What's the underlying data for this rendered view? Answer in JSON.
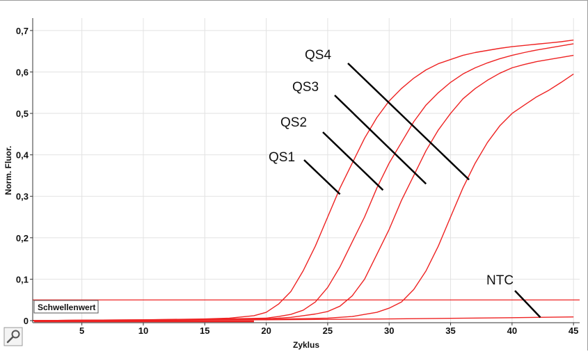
{
  "chart_data": {
    "type": "line",
    "xlabel": "Zyklus",
    "ylabel": "Norm. Fluor.",
    "xlim": [
      1,
      45.5
    ],
    "ylim": [
      -0.005,
      0.73
    ],
    "x_ticks": [
      5,
      10,
      15,
      20,
      25,
      30,
      35,
      40,
      45
    ],
    "y_ticks": [
      {
        "value": 0,
        "label": "0"
      },
      {
        "value": 0.1,
        "label": "0,1"
      },
      {
        "value": 0.2,
        "label": "0,2"
      },
      {
        "value": 0.3,
        "label": "0,3"
      },
      {
        "value": 0.4,
        "label": "0,4"
      },
      {
        "value": 0.5,
        "label": "0,5"
      },
      {
        "value": 0.6,
        "label": "0,6"
      },
      {
        "value": 0.7,
        "label": "0,7"
      }
    ],
    "grid": true,
    "line_color": "#ee2222",
    "series": [
      {
        "name": "QS4",
        "x": [
          1,
          5,
          10,
          15,
          17,
          19,
          20,
          21,
          22,
          23,
          24,
          25,
          26,
          27,
          28,
          29,
          30,
          31,
          32,
          33,
          34,
          35,
          36,
          37,
          38,
          39,
          40,
          41,
          42,
          43,
          44,
          45
        ],
        "y": [
          0,
          0.001,
          0.002,
          0.004,
          0.006,
          0.012,
          0.02,
          0.04,
          0.07,
          0.12,
          0.18,
          0.25,
          0.32,
          0.38,
          0.44,
          0.49,
          0.53,
          0.56,
          0.585,
          0.605,
          0.62,
          0.63,
          0.64,
          0.647,
          0.652,
          0.657,
          0.661,
          0.664,
          0.667,
          0.67,
          0.673,
          0.677
        ]
      },
      {
        "name": "QS3",
        "x": [
          1,
          5,
          10,
          15,
          20,
          21,
          22,
          23,
          24,
          25,
          26,
          27,
          28,
          29,
          30,
          31,
          32,
          33,
          34,
          35,
          36,
          37,
          38,
          39,
          40,
          41,
          42,
          43,
          44,
          45
        ],
        "y": [
          0,
          0.001,
          0.002,
          0.003,
          0.006,
          0.01,
          0.015,
          0.025,
          0.045,
          0.08,
          0.13,
          0.19,
          0.25,
          0.32,
          0.38,
          0.43,
          0.48,
          0.52,
          0.55,
          0.575,
          0.595,
          0.61,
          0.622,
          0.632,
          0.64,
          0.647,
          0.653,
          0.658,
          0.663,
          0.668
        ]
      },
      {
        "name": "QS2",
        "x": [
          1,
          5,
          10,
          15,
          20,
          22,
          23,
          24,
          25,
          26,
          27,
          28,
          29,
          30,
          31,
          32,
          33,
          34,
          35,
          36,
          37,
          38,
          39,
          40,
          41,
          42,
          43,
          44,
          45
        ],
        "y": [
          0,
          0.001,
          0.001,
          0.002,
          0.004,
          0.008,
          0.012,
          0.016,
          0.022,
          0.035,
          0.06,
          0.1,
          0.16,
          0.22,
          0.29,
          0.35,
          0.41,
          0.46,
          0.5,
          0.535,
          0.56,
          0.58,
          0.597,
          0.61,
          0.618,
          0.625,
          0.63,
          0.635,
          0.64
        ]
      },
      {
        "name": "QS1",
        "x": [
          1,
          5,
          10,
          15,
          20,
          25,
          27,
          28,
          29,
          30,
          31,
          32,
          33,
          34,
          35,
          36,
          37,
          38,
          39,
          40,
          41,
          42,
          43,
          44,
          45
        ],
        "y": [
          0,
          0.001,
          0.001,
          0.002,
          0.003,
          0.006,
          0.01,
          0.015,
          0.02,
          0.03,
          0.045,
          0.075,
          0.12,
          0.18,
          0.25,
          0.32,
          0.38,
          0.43,
          0.47,
          0.5,
          0.52,
          0.54,
          0.556,
          0.575,
          0.595
        ]
      },
      {
        "name": "NTC",
        "x": [
          1,
          10,
          20,
          30,
          40,
          45
        ],
        "y": [
          0,
          0.001,
          0.002,
          0.004,
          0.007,
          0.009
        ]
      }
    ],
    "threshold": {
      "label": "Schwellenwert",
      "value": 0.05
    },
    "annotations": [
      {
        "text": "QS4",
        "target": {
          "x": 36.5,
          "y": 0.34
        }
      },
      {
        "text": "QS3",
        "target": {
          "x": 33,
          "y": 0.33
        }
      },
      {
        "text": "QS2",
        "target": {
          "x": 29.5,
          "y": 0.315
        }
      },
      {
        "text": "QS1",
        "target": {
          "x": 26,
          "y": 0.305
        }
      },
      {
        "text": "NTC",
        "target": {
          "x": 42.3,
          "y": 0.008
        }
      }
    ]
  }
}
